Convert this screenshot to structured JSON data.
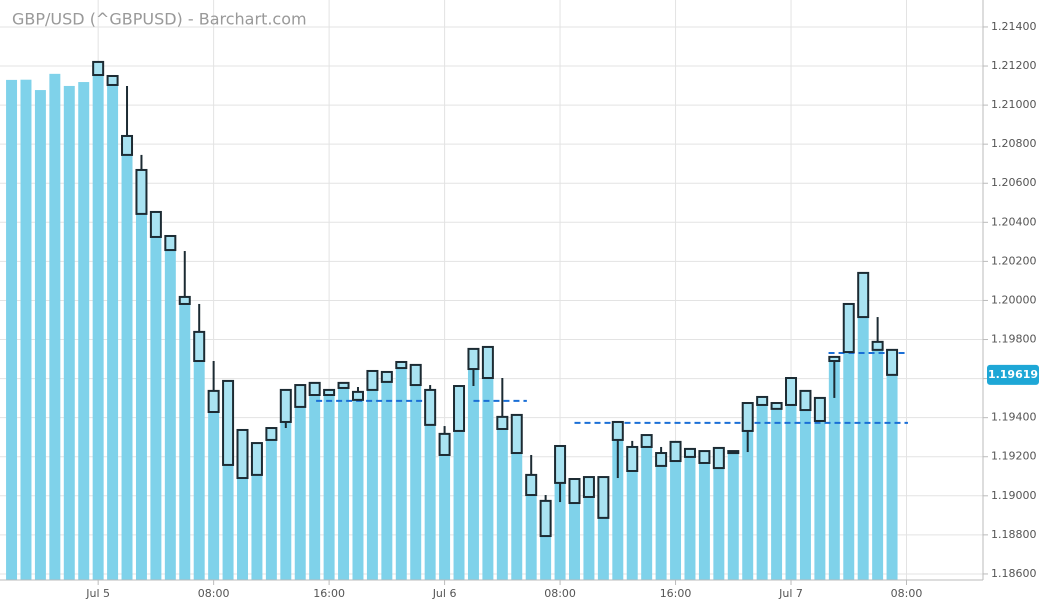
{
  "chart_data": {
    "type": "candlestick",
    "title": "GBP/USD (^GBPUSD) - Barchart.com",
    "x": [
      0,
      1,
      2,
      3,
      4,
      5,
      6,
      7,
      8,
      9,
      10,
      11,
      12,
      13,
      14,
      15,
      16,
      17,
      18,
      19,
      20,
      21,
      22,
      23,
      24,
      25,
      26,
      27,
      28,
      29,
      30,
      31,
      32,
      33,
      34,
      35,
      36,
      37,
      38,
      39,
      40,
      41,
      42,
      43,
      44,
      45,
      46,
      47,
      48,
      49,
      50,
      51,
      52,
      53,
      54,
      55
    ],
    "open": [
      1.21154,
      1.21149,
      1.20842,
      1.20668,
      1.20453,
      1.2033,
      1.20018,
      1.19839,
      1.19537,
      1.19588,
      1.19337,
      1.19107,
      1.19286,
      1.19378,
      1.19455,
      1.19516,
      1.19542,
      1.19552,
      1.19532,
      1.19542,
      1.19634,
      1.19654,
      1.1967,
      1.19542,
      1.19317,
      1.19332,
      1.19649,
      1.19762,
      1.19404,
      1.19414,
      1.19107,
      1.18974,
      1.19066,
      1.19086,
      1.18994,
      1.19096,
      1.19286,
      1.1925,
      1.1925,
      1.19219,
      1.19178,
      1.1924,
      1.19229,
      1.19142,
      1.19219,
      1.19332,
      1.19465,
      1.19475,
      1.19465,
      1.19537,
      1.19383,
      1.1969,
      1.19736,
      1.19915,
      1.19788,
      1.19747
    ],
    "high": [
      1.21221,
      1.21149,
      1.21098,
      1.20745,
      1.20453,
      1.2033,
      1.20253,
      1.19982,
      1.1969,
      1.19588,
      1.19337,
      1.1927,
      1.19347,
      1.19542,
      1.19567,
      1.19578,
      1.19542,
      1.19578,
      1.19557,
      1.19639,
      1.19634,
      1.19685,
      1.1967,
      1.19567,
      1.19357,
      1.19562,
      1.19752,
      1.19762,
      1.19603,
      1.19414,
      1.19209,
      1.19004,
      1.19255,
      1.19086,
      1.19096,
      1.19096,
      1.19378,
      1.19281,
      1.19311,
      1.1925,
      1.19276,
      1.1924,
      1.19229,
      1.19245,
      1.19229,
      1.19475,
      1.19506,
      1.19475,
      1.19603,
      1.19537,
      1.19501,
      1.19711,
      1.19982,
      1.20141,
      1.19915,
      1.19747
    ],
    "low": [
      1.21154,
      1.21103,
      1.20745,
      1.20443,
      1.20325,
      1.20258,
      1.19982,
      1.1969,
      1.19429,
      1.19158,
      1.19091,
      1.19107,
      1.19286,
      1.19347,
      1.19455,
      1.19516,
      1.19516,
      1.19552,
      1.19491,
      1.19542,
      1.19583,
      1.19654,
      1.19567,
      1.19363,
      1.19209,
      1.19332,
      1.19562,
      1.19603,
      1.19342,
      1.19219,
      1.19004,
      1.18794,
      1.18968,
      1.18963,
      1.18994,
      1.18887,
      1.19091,
      1.19127,
      1.1925,
      1.19153,
      1.19178,
      1.19199,
      1.19168,
      1.19142,
      1.19219,
      1.19224,
      1.19465,
      1.19445,
      1.19465,
      1.19439,
      1.19383,
      1.19501,
      1.19736,
      1.19915,
      1.19747,
      1.19619
    ],
    "close": [
      1.21221,
      1.21103,
      1.20745,
      1.20443,
      1.20325,
      1.20258,
      1.19982,
      1.1969,
      1.19429,
      1.19158,
      1.19091,
      1.1927,
      1.19347,
      1.19542,
      1.19567,
      1.19578,
      1.19516,
      1.19578,
      1.19491,
      1.19639,
      1.19583,
      1.19685,
      1.19567,
      1.19363,
      1.19209,
      1.19562,
      1.19752,
      1.19603,
      1.19342,
      1.19219,
      1.19004,
      1.18794,
      1.19255,
      1.18963,
      1.19096,
      1.18887,
      1.19378,
      1.19127,
      1.19311,
      1.19153,
      1.19276,
      1.19199,
      1.19168,
      1.19245,
      1.19229,
      1.19475,
      1.19506,
      1.19445,
      1.19603,
      1.19439,
      1.19501,
      1.19711,
      1.19982,
      1.20141,
      1.19747,
      1.19619
    ],
    "candle_color": "#a9e3f2",
    "price_bars": {
      "color": "#7fd2ea",
      "x": [
        -6,
        -5,
        -4,
        -3,
        -2,
        -1,
        0,
        1,
        2,
        3,
        4,
        5,
        6,
        7,
        8,
        9,
        10,
        11,
        12,
        13,
        14,
        15,
        16,
        17,
        18,
        19,
        20,
        21,
        22,
        23,
        24,
        25,
        26,
        27,
        28,
        29,
        30,
        31,
        32,
        33,
        34,
        35,
        36,
        37,
        38,
        39,
        40,
        41,
        42,
        43,
        44,
        45,
        46,
        47,
        48,
        49,
        50,
        51,
        52,
        53,
        54,
        55
      ],
      "values": [
        1.21129,
        1.2113,
        1.21077,
        1.2116,
        1.21098,
        1.21118,
        1.21221,
        1.21103,
        1.20745,
        1.20443,
        1.20325,
        1.20258,
        1.19982,
        1.1969,
        1.19429,
        1.19158,
        1.19091,
        1.1927,
        1.19347,
        1.19542,
        1.19567,
        1.19578,
        1.19516,
        1.19578,
        1.19491,
        1.19639,
        1.19583,
        1.19685,
        1.19567,
        1.19363,
        1.19209,
        1.19562,
        1.19752,
        1.19603,
        1.19342,
        1.19219,
        1.19004,
        1.18794,
        1.19255,
        1.18963,
        1.19096,
        1.18887,
        1.19378,
        1.19127,
        1.19311,
        1.19153,
        1.19276,
        1.19199,
        1.19168,
        1.19245,
        1.19229,
        1.19475,
        1.19506,
        1.19445,
        1.19603,
        1.19439,
        1.19501,
        1.19711,
        1.19982,
        1.20141,
        1.19747,
        1.19619
      ]
    },
    "levels": [
      {
        "value": 1.19486,
        "x": [
          15.1,
          22.9
        ]
      },
      {
        "value": 1.19486,
        "x": [
          26.0,
          29.7
        ]
      },
      {
        "value": 1.19373,
        "x": [
          33.0,
          56.1
        ]
      },
      {
        "value": 1.19731,
        "x": [
          50.6,
          56.1
        ]
      }
    ],
    "level_color": "#1a6fd6",
    "last_price": 1.19619,
    "last_price_color": "#1ea7d6",
    "xlim": [
      -6.8,
      61.3
    ],
    "ylim": [
      1.18569,
      1.21538
    ],
    "xticks": [
      {
        "value": 0,
        "label": "Jul 5"
      },
      {
        "value": 8,
        "label": "08:00"
      },
      {
        "value": 16,
        "label": "16:00"
      },
      {
        "value": 24,
        "label": "Jul 6"
      },
      {
        "value": 32,
        "label": "08:00"
      },
      {
        "value": 40,
        "label": "16:00"
      },
      {
        "value": 48,
        "label": "Jul 7"
      },
      {
        "value": 56,
        "label": "08:00"
      }
    ],
    "yticks": [
      {
        "value": 1.186,
        "label": "1.18600"
      },
      {
        "value": 1.188,
        "label": "1.18800"
      },
      {
        "value": 1.19,
        "label": "1.19000"
      },
      {
        "value": 1.192,
        "label": "1.19200"
      },
      {
        "value": 1.194,
        "label": "1.19400"
      },
      {
        "value": 1.196,
        "label": "1.19600"
      },
      {
        "value": 1.198,
        "label": "1.19800"
      },
      {
        "value": 1.2,
        "label": "1.20000"
      },
      {
        "value": 1.202,
        "label": "1.20200"
      },
      {
        "value": 1.204,
        "label": "1.20400"
      },
      {
        "value": 1.206,
        "label": "1.20600"
      },
      {
        "value": 1.208,
        "label": "1.20800"
      },
      {
        "value": 1.21,
        "label": "1.21000"
      },
      {
        "value": 1.212,
        "label": "1.21200"
      },
      {
        "value": 1.214,
        "label": "1.21400"
      }
    ],
    "grid": true
  }
}
